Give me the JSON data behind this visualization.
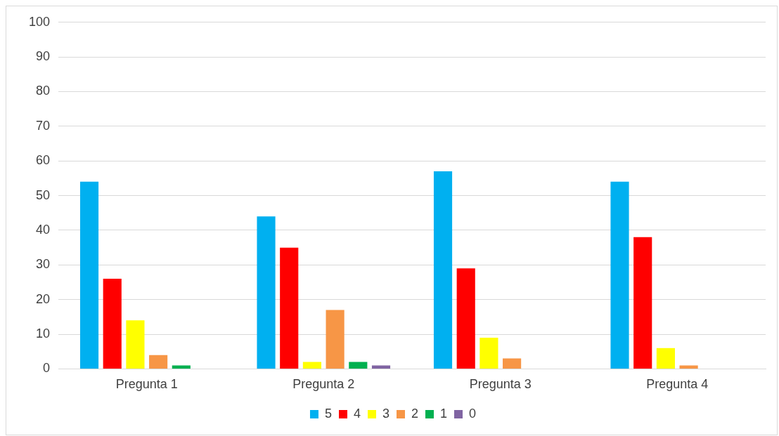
{
  "chart_data": {
    "type": "bar",
    "categories": [
      "Pregunta 1",
      "Pregunta 2",
      "Pregunta 3",
      "Pregunta 4"
    ],
    "series": [
      {
        "name": "5",
        "color": "#00b0f0",
        "values": [
          54,
          44,
          57,
          54
        ]
      },
      {
        "name": "4",
        "color": "#ff0000",
        "values": [
          26,
          35,
          29,
          38
        ]
      },
      {
        "name": "3",
        "color": "#ffff00",
        "values": [
          14,
          2,
          9,
          6
        ]
      },
      {
        "name": "2",
        "color": "#f79646",
        "values": [
          4,
          17,
          3,
          1
        ]
      },
      {
        "name": "1",
        "color": "#00b050",
        "values": [
          1,
          2,
          0,
          0
        ]
      },
      {
        "name": "0",
        "color": "#8064a2",
        "values": [
          0,
          1,
          0,
          0
        ]
      }
    ],
    "ylim": [
      0,
      100
    ],
    "yticks": [
      0,
      10,
      20,
      30,
      40,
      50,
      60,
      70,
      80,
      90,
      100
    ],
    "grid": "y",
    "legend": "bottom"
  }
}
